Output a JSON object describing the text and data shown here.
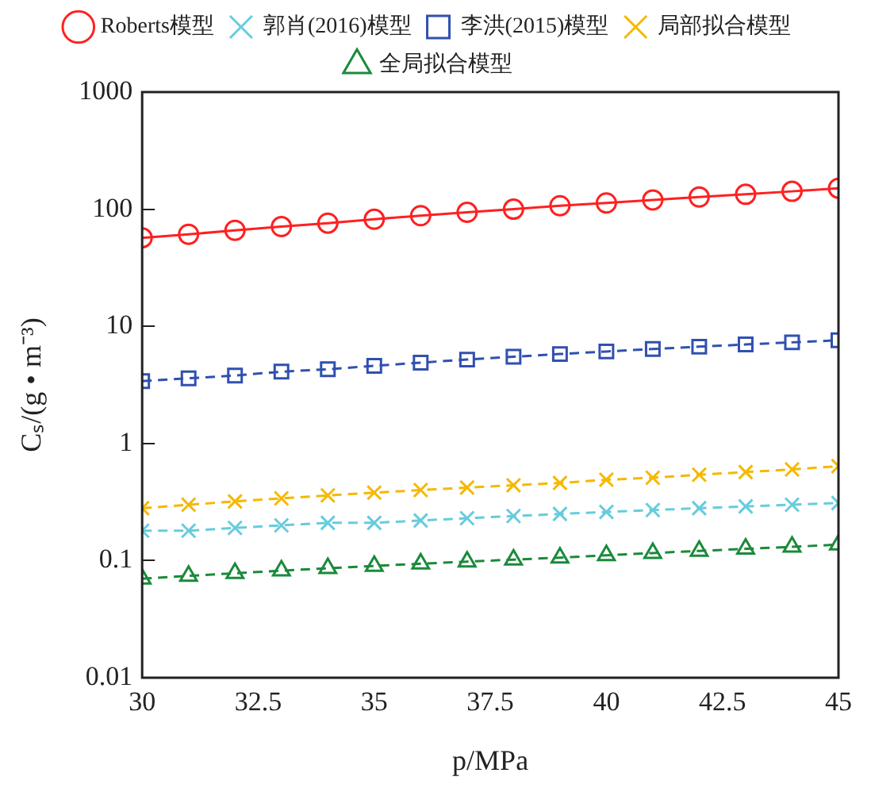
{
  "chart_data": {
    "type": "line",
    "xlabel": "p/MPa",
    "ylabel": "Cₛ/(g • m⁻³)",
    "x": [
      30,
      31,
      32,
      33,
      34,
      35,
      36,
      37,
      38,
      39,
      40,
      41,
      42,
      43,
      44,
      45
    ],
    "xlim": [
      30,
      45
    ],
    "xticks": [
      30,
      32.5,
      35,
      37.5,
      40,
      42.5,
      45
    ],
    "ylim": [
      0.01,
      1000
    ],
    "yticks": [
      0.01,
      0.1,
      1,
      10,
      100,
      1000
    ],
    "log": "y",
    "grid": false,
    "legend": "top",
    "series": [
      {
        "name": "Roberts模型",
        "color": "#ff2020",
        "marker": "circle",
        "line_style": "solid",
        "values": [
          57,
          61,
          66,
          71,
          76,
          82,
          88,
          94,
          100,
          107,
          113,
          120,
          127,
          134,
          142,
          151
        ]
      },
      {
        "name": "郭肖(2016)模型",
        "color": "#66ccdd",
        "marker": "cross",
        "line_style": "dashed",
        "values": [
          0.18,
          0.18,
          0.19,
          0.2,
          0.21,
          0.21,
          0.22,
          0.23,
          0.24,
          0.25,
          0.26,
          0.27,
          0.28,
          0.29,
          0.3,
          0.31
        ]
      },
      {
        "name": "李洪(2015)模型",
        "color": "#3050b0",
        "marker": "square",
        "line_style": "dashed",
        "values": [
          3.4,
          3.6,
          3.8,
          4.1,
          4.3,
          4.6,
          4.9,
          5.2,
          5.5,
          5.8,
          6.1,
          6.4,
          6.7,
          7.0,
          7.3,
          7.6
        ]
      },
      {
        "name": "局部拟合模型",
        "color": "#f5b800",
        "marker": "cross",
        "line_style": "dashed",
        "values": [
          0.28,
          0.3,
          0.32,
          0.34,
          0.36,
          0.38,
          0.4,
          0.42,
          0.44,
          0.46,
          0.49,
          0.51,
          0.54,
          0.57,
          0.6,
          0.64
        ]
      },
      {
        "name": "全局拟合模型",
        "color": "#1a8a3a",
        "marker": "triangle",
        "line_style": "dashed",
        "values": [
          0.07,
          0.074,
          0.078,
          0.082,
          0.086,
          0.09,
          0.094,
          0.098,
          0.102,
          0.106,
          0.111,
          0.116,
          0.121,
          0.126,
          0.131,
          0.137
        ]
      }
    ]
  }
}
